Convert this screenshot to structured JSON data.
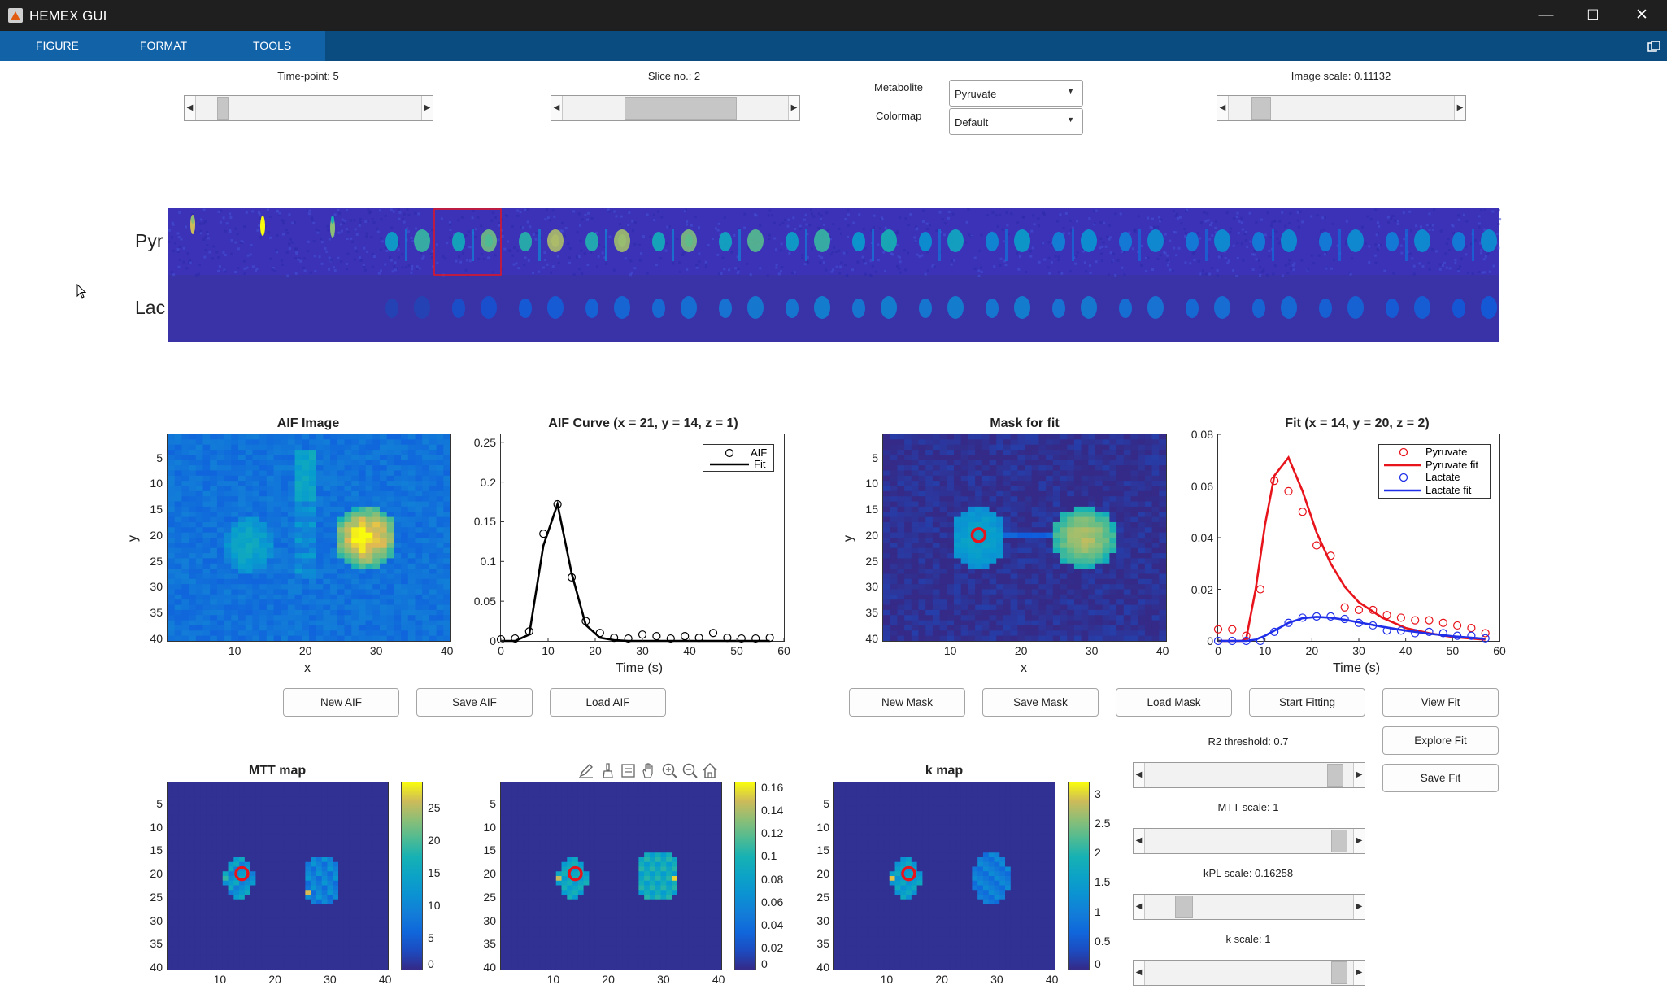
{
  "window": {
    "title": "HEMEX GUI",
    "minimize": "—",
    "maximize": "☐",
    "close": "✕"
  },
  "menu": {
    "items": [
      "FIGURE",
      "FORMAT",
      "TOOLS"
    ]
  },
  "controls": {
    "timepoint_label": "Time-point: 5",
    "slice_label": "Slice no.: 2",
    "metabolite_label": "Metabolite",
    "metabolite_value": "Pyruvate",
    "colormap_label": "Colormap",
    "colormap_value": "Default",
    "image_scale_label": "Image scale: 0.11132",
    "timepoint_slider_value": 0.1,
    "slice_slider_value": 0.55,
    "image_scale_slider_value": 0.11
  },
  "strip": {
    "row_labels": [
      "Pyr",
      "Lac"
    ],
    "selected_timepoint": 5,
    "timepoints": 20
  },
  "aif_image": {
    "title": "AIF Image",
    "xlabel": "x",
    "ylabel": "y",
    "xticks": [
      "10",
      "20",
      "30",
      "40"
    ],
    "yticks": [
      "5",
      "10",
      "15",
      "20",
      "25",
      "30",
      "35",
      "40"
    ]
  },
  "mask_image": {
    "title": "Mask for fit",
    "xlabel": "x",
    "ylabel": "y",
    "xticks": [
      "10",
      "20",
      "30",
      "40"
    ],
    "yticks": [
      "5",
      "10",
      "15",
      "20",
      "25",
      "30",
      "35",
      "40"
    ]
  },
  "chart_data": [
    {
      "type": "line",
      "title": "AIF Curve (x = 21, y = 14, z = 1)",
      "xlabel": "Time (s)",
      "ylabel": "",
      "xlim": [
        0,
        60
      ],
      "ylim": [
        0,
        0.26
      ],
      "xticks": [
        "0",
        "10",
        "20",
        "30",
        "40",
        "50",
        "60"
      ],
      "yticks": [
        "0",
        "0.05",
        "0.1",
        "0.15",
        "0.2",
        "0.25"
      ],
      "legend": [
        "AIF",
        "Fit"
      ],
      "legend_position": "top-right",
      "series": [
        {
          "name": "AIF",
          "marker": "circle",
          "color": "#000000",
          "x": [
            0,
            3,
            6,
            9,
            12,
            15,
            18,
            21,
            24,
            27,
            30,
            33,
            36,
            39,
            42,
            45,
            48,
            51,
            54,
            57
          ],
          "y": [
            0.002,
            0.003,
            0.012,
            0.135,
            0.172,
            0.08,
            0.025,
            0.01,
            0.004,
            0.003,
            0.008,
            0.006,
            0.003,
            0.006,
            0.004,
            0.01,
            0.004,
            0.003,
            0.003,
            0.004
          ]
        },
        {
          "name": "Fit",
          "marker": "none",
          "color": "#000000",
          "x": [
            0,
            3,
            6,
            9,
            12,
            15,
            18,
            21,
            24,
            27,
            30,
            35,
            40,
            50,
            57
          ],
          "y": [
            0,
            0,
            0.008,
            0.12,
            0.172,
            0.085,
            0.02,
            0.004,
            0.001,
            0,
            0,
            0,
            0,
            0,
            0
          ]
        }
      ]
    },
    {
      "type": "line",
      "title": "Fit (x = 14, y = 20, z = 2)",
      "xlabel": "Time (s)",
      "ylabel": "",
      "xlim": [
        0,
        60
      ],
      "ylim": [
        0,
        0.08
      ],
      "xticks": [
        "0",
        "10",
        "20",
        "30",
        "40",
        "50",
        "60"
      ],
      "yticks": [
        "0",
        "0.02",
        "0.04",
        "0.06",
        "0.08"
      ],
      "legend": [
        "Pyruvate",
        "Pyruvate fit",
        "Lactate",
        "Lactate fit"
      ],
      "legend_position": "top-right",
      "series": [
        {
          "name": "Pyruvate",
          "marker": "circle",
          "color": "#e8141c",
          "x": [
            0,
            3,
            6,
            9,
            12,
            15,
            18,
            21,
            24,
            27,
            30,
            33,
            36,
            39,
            42,
            45,
            48,
            51,
            54,
            57
          ],
          "y": [
            0.0045,
            0.0045,
            0.002,
            0.02,
            0.062,
            0.058,
            0.05,
            0.037,
            0.033,
            0.013,
            0.012,
            0.012,
            0.01,
            0.009,
            0.008,
            0.008,
            0.007,
            0.006,
            0.005,
            0.003
          ]
        },
        {
          "name": "Pyruvate fit",
          "marker": "none",
          "color": "#e8141c",
          "x": [
            0,
            5,
            6,
            8,
            10,
            12,
            15,
            18,
            21,
            24,
            27,
            30,
            35,
            40,
            45,
            50,
            57
          ],
          "y": [
            0,
            0,
            0.001,
            0.02,
            0.045,
            0.064,
            0.071,
            0.058,
            0.042,
            0.03,
            0.021,
            0.015,
            0.009,
            0.005,
            0.003,
            0.0015,
            0.0005
          ]
        },
        {
          "name": "Lactate",
          "marker": "circle",
          "color": "#1f2ee8",
          "x": [
            0,
            3,
            6,
            9,
            12,
            15,
            18,
            21,
            24,
            27,
            30,
            33,
            36,
            39,
            42,
            45,
            48,
            51,
            54,
            57
          ],
          "y": [
            0,
            0,
            0,
            0,
            0.0035,
            0.007,
            0.009,
            0.0095,
            0.0095,
            0.0085,
            0.007,
            0.006,
            0.004,
            0.004,
            0.003,
            0.0035,
            0.003,
            0.002,
            0.002,
            0.001
          ]
        },
        {
          "name": "Lactate fit",
          "marker": "none",
          "color": "#1f2ee8",
          "x": [
            0,
            6,
            8,
            10,
            12,
            15,
            18,
            21,
            24,
            27,
            30,
            35,
            40,
            45,
            50,
            57
          ],
          "y": [
            0,
            0,
            0.0005,
            0.002,
            0.004,
            0.007,
            0.0088,
            0.0093,
            0.009,
            0.0082,
            0.0072,
            0.0055,
            0.004,
            0.0028,
            0.0018,
            0.0008
          ]
        }
      ]
    }
  ],
  "buttons": {
    "new_aif": "New AIF",
    "save_aif": "Save AIF",
    "load_aif": "Load AIF",
    "new_mask": "New Mask",
    "save_mask": "Save Mask",
    "load_mask": "Load Mask",
    "start_fitting": "Start Fitting",
    "view_fit": "View Fit",
    "explore_fit": "Explore Fit",
    "save_fit": "Save Fit"
  },
  "maps": [
    {
      "title": "MTT map",
      "xticks": [
        "10",
        "20",
        "30",
        "40"
      ],
      "yticks": [
        "5",
        "10",
        "15",
        "20",
        "25",
        "30",
        "35",
        "40"
      ],
      "cbar_ticks": [
        "0",
        "5",
        "10",
        "15",
        "20",
        "25"
      ],
      "cbar_max": 29
    },
    {
      "title": "",
      "xticks": [
        "10",
        "20",
        "30",
        "40"
      ],
      "yticks": [
        "5",
        "10",
        "15",
        "20",
        "25",
        "30",
        "35",
        "40"
      ],
      "cbar_ticks": [
        "0",
        "0.02",
        "0.04",
        "0.06",
        "0.08",
        "0.1",
        "0.12",
        "0.14",
        "0.16"
      ],
      "cbar_max": 0.165
    },
    {
      "title": "k map",
      "xticks": [
        "10",
        "20",
        "30",
        "40"
      ],
      "yticks": [
        "5",
        "10",
        "15",
        "20",
        "25",
        "30",
        "35",
        "40"
      ],
      "cbar_ticks": [
        "0",
        "0.5",
        "1",
        "1.5",
        "2",
        "2.5",
        "3"
      ],
      "cbar_max": 3.2
    }
  ],
  "scales": {
    "r2_label": "R2 threshold: 0.7",
    "r2_value": 0.95,
    "mtt_label": "MTT scale: 1",
    "mtt_value": 0.97,
    "kpl_label": "kPL scale: 0.16258",
    "kpl_value": 0.16,
    "k_label": "k scale: 1",
    "k_value": 0.97
  },
  "axes_toolbar": [
    "pencil-icon",
    "brush-icon",
    "datatip-icon",
    "pan-icon",
    "zoom-in-icon",
    "zoom-out-icon",
    "home-icon"
  ]
}
